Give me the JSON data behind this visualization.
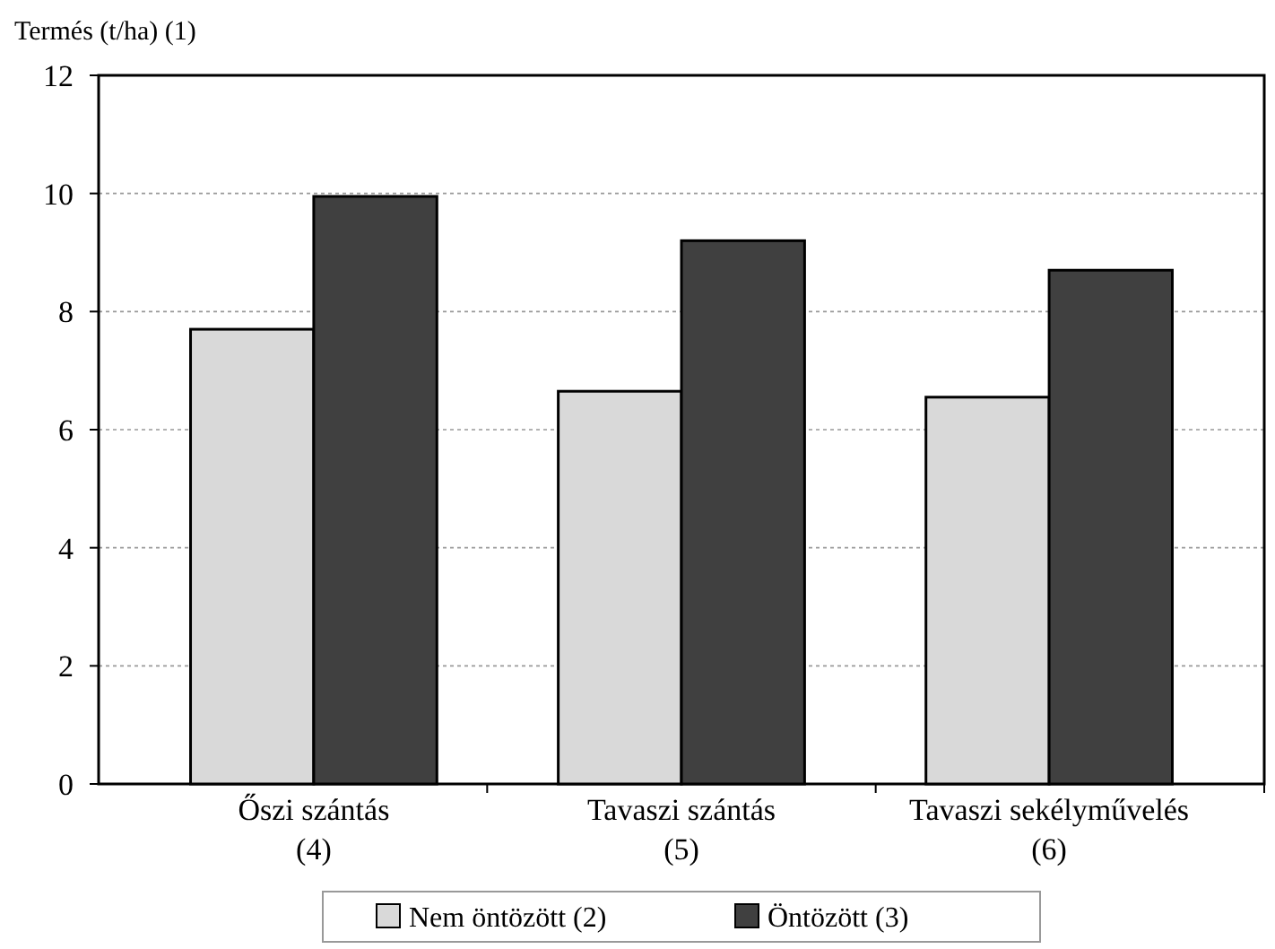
{
  "chart_data": {
    "type": "bar",
    "ylabel": "Termés (t/ha) (1)",
    "categories": [
      "Őszi szántás\n(4)",
      "Tavaszi szántás\n(5)",
      "Tavaszi sekélyművelés\n(6)"
    ],
    "series": [
      {
        "name": "Nem öntözött (2)",
        "color": "#d9d9d9",
        "values": [
          7.7,
          6.65,
          6.55
        ]
      },
      {
        "name": "Öntözött (3)",
        "color": "#404040",
        "values": [
          9.95,
          9.2,
          8.7
        ]
      }
    ],
    "ylim": [
      0,
      12
    ],
    "yticks": [
      0,
      2,
      4,
      6,
      8,
      10,
      12
    ],
    "grid": "y",
    "legend": "bottom"
  }
}
